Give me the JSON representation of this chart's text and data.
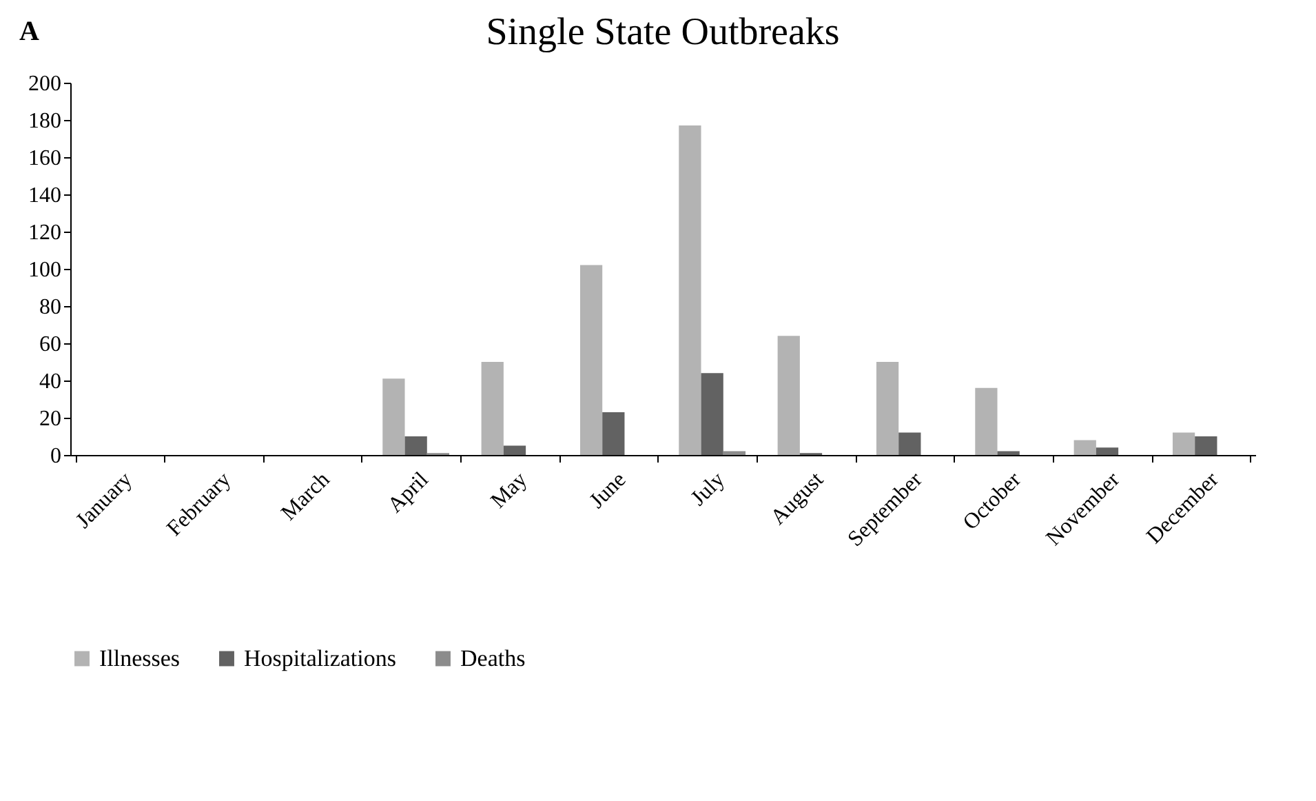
{
  "chart_data": {
    "type": "bar",
    "title": "Single State Outbreaks",
    "annotations": [
      "A"
    ],
    "categories": [
      "January",
      "February",
      "March",
      "April",
      "May",
      "June",
      "July",
      "August",
      "September",
      "October",
      "November",
      "December"
    ],
    "series": [
      {
        "name": "Illnesses",
        "color": "#b3b3b3",
        "values": [
          0,
          0,
          0,
          41,
          50,
          102,
          177,
          64,
          50,
          36,
          8,
          12
        ]
      },
      {
        "name": "Hospitalizations",
        "color": "#626262",
        "values": [
          0,
          0,
          0,
          10,
          5,
          23,
          44,
          1,
          12,
          2,
          4,
          10
        ]
      },
      {
        "name": "Deaths",
        "color": "#8c8c8c",
        "values": [
          0,
          0,
          0,
          1,
          0,
          0,
          2,
          0,
          0,
          0,
          0,
          0
        ]
      }
    ],
    "ylim": [
      0,
      200
    ],
    "yticks": [
      0,
      20,
      40,
      60,
      80,
      100,
      120,
      140,
      160,
      180,
      200
    ],
    "grid": false,
    "legend": "bottom"
  }
}
